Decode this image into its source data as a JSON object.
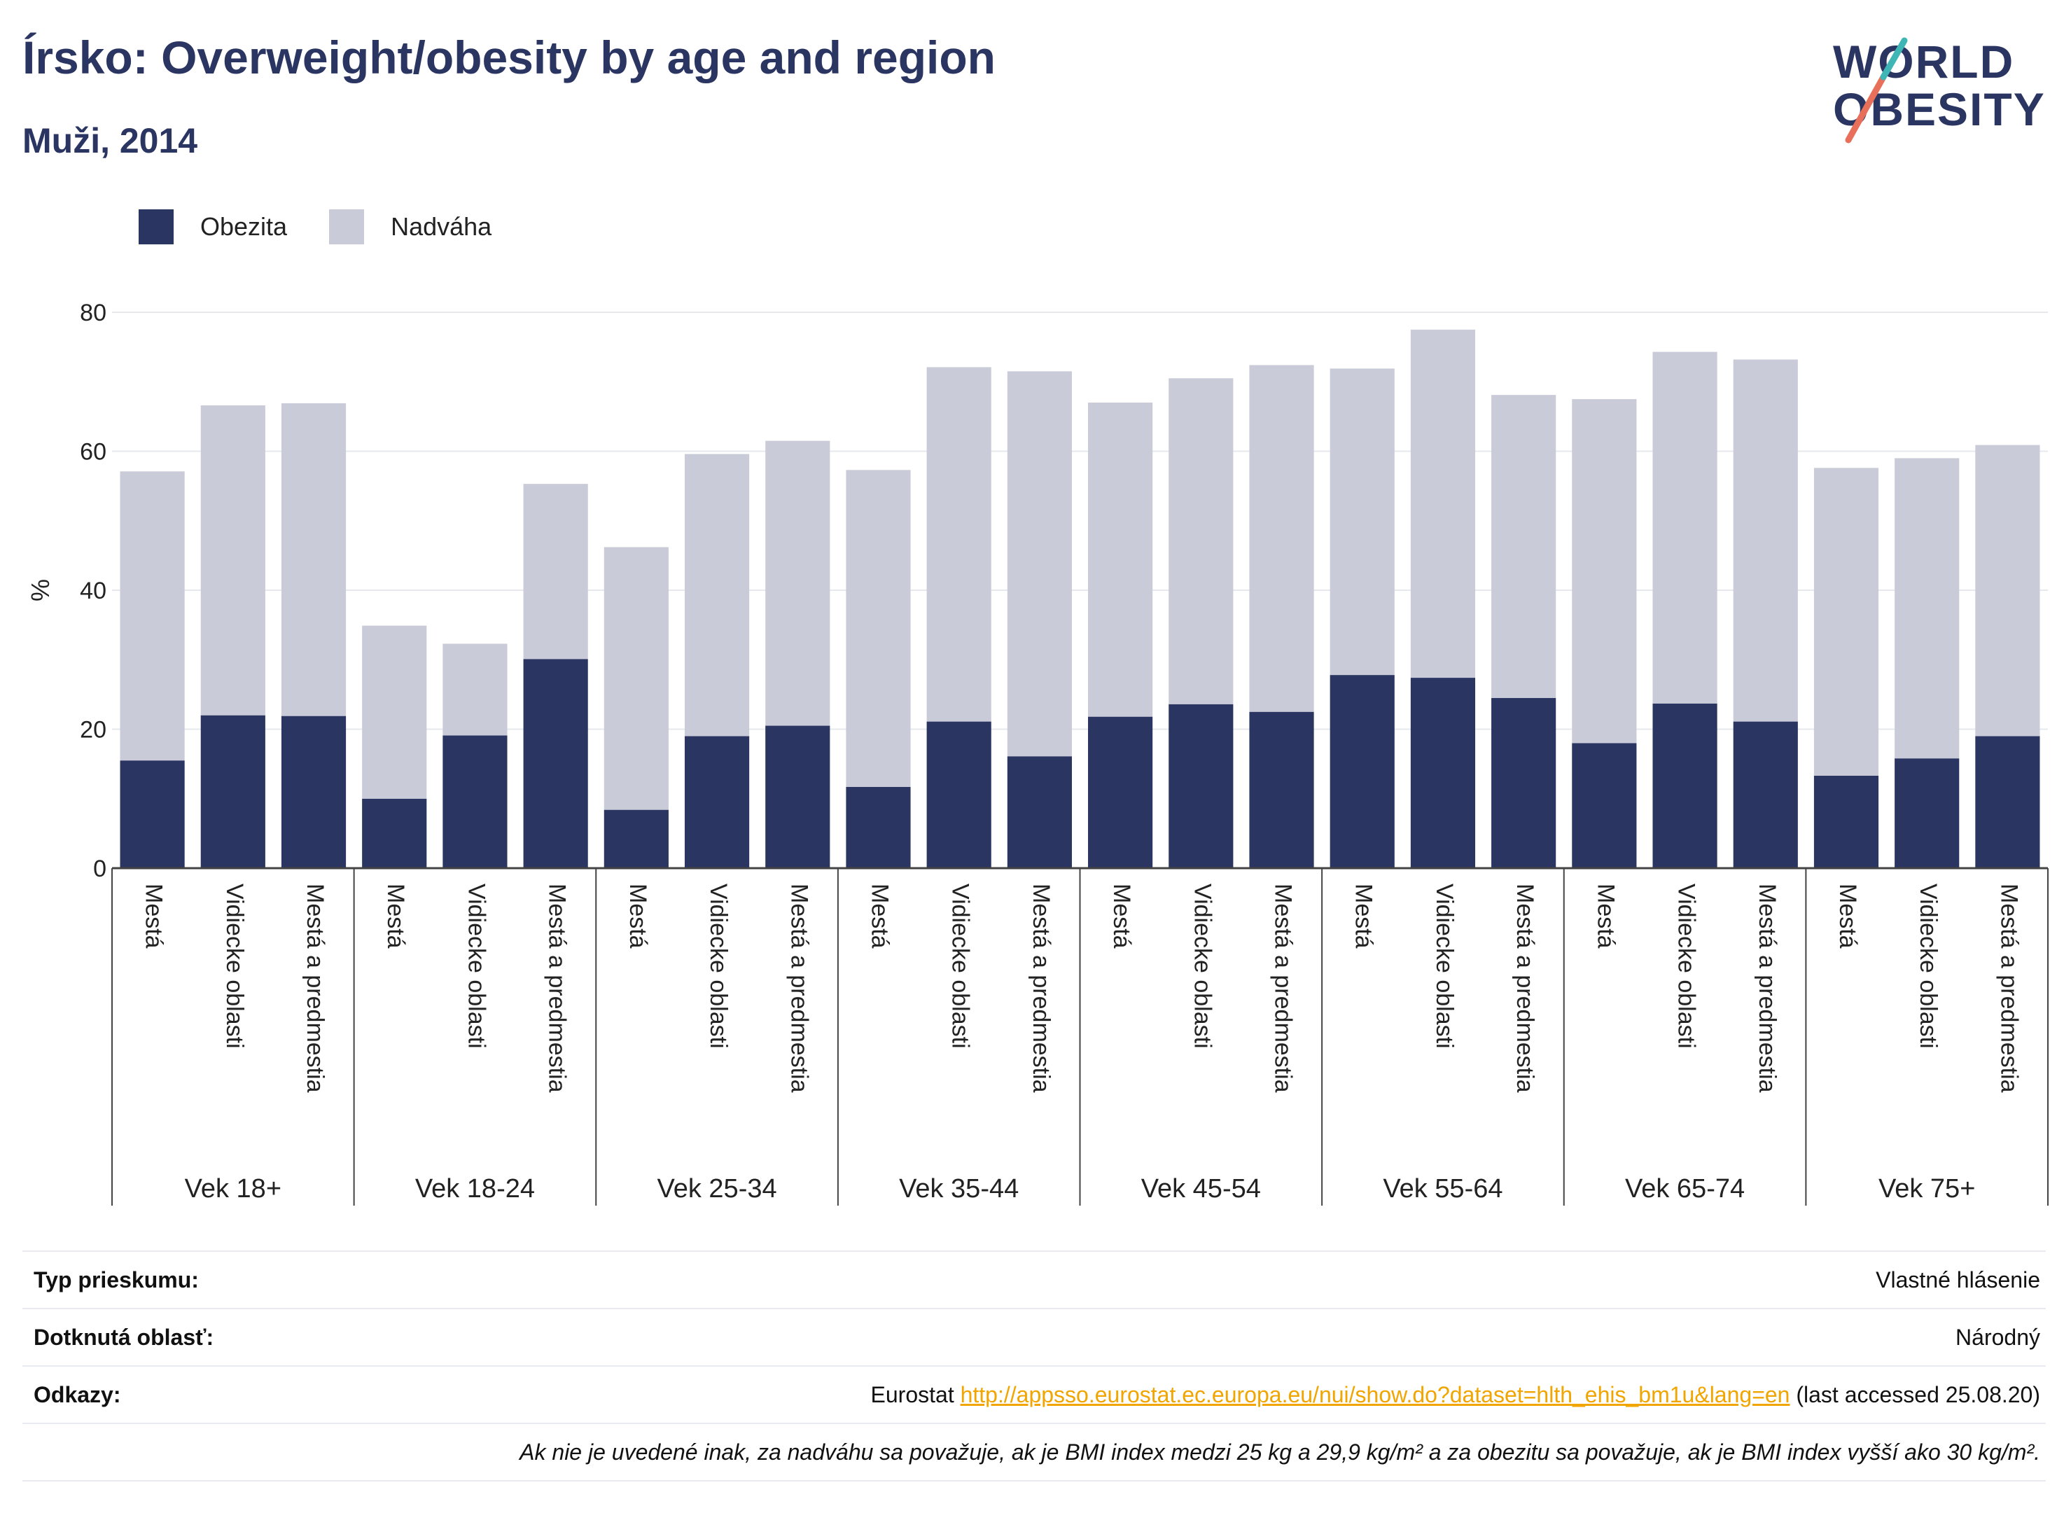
{
  "header": {
    "title": "Írsko: Overweight/obesity by age and region",
    "subtitle": "Muži, 2014"
  },
  "logo": {
    "line1": "WORLD",
    "line2": "OBESITY"
  },
  "legend": [
    {
      "label": "Obezita",
      "color": "#2b3562"
    },
    {
      "label": "Nadváha",
      "color": "#c9ccd8"
    }
  ],
  "chart_data": {
    "type": "bar",
    "stacked": true,
    "ylabel": "%",
    "ylim": [
      0,
      80
    ],
    "yticks": [
      0,
      20,
      40,
      60,
      80
    ],
    "grid": true,
    "legend_position": "top-left",
    "groups": [
      "Vek 18+",
      "Vek 18-24",
      "Vek 25-34",
      "Vek 35-44",
      "Vek 45-54",
      "Vek 55-64",
      "Vek 65-74",
      "Vek 75+"
    ],
    "categories": [
      "Mestá",
      "Vidiecke oblasti",
      "Mestá a predmestia"
    ],
    "series": [
      {
        "name": "Obezita",
        "color": "#2b3562",
        "values": [
          [
            15.5,
            22.0,
            21.9
          ],
          [
            10.0,
            19.1,
            30.1
          ],
          [
            8.4,
            19.0,
            20.5
          ],
          [
            11.7,
            21.1,
            16.1
          ],
          [
            21.8,
            23.6,
            22.5
          ],
          [
            27.8,
            27.4,
            24.5
          ],
          [
            18.0,
            23.7,
            21.1
          ],
          [
            13.3,
            15.8,
            19.0
          ]
        ]
      },
      {
        "name": "Nadváha",
        "color": "#c9ccd8",
        "values": [
          [
            41.6,
            44.6,
            45.0
          ],
          [
            24.9,
            13.2,
            25.2
          ],
          [
            37.8,
            40.6,
            41.0
          ],
          [
            45.6,
            51.0,
            55.4
          ],
          [
            45.2,
            46.9,
            49.9
          ],
          [
            44.1,
            50.1,
            43.6
          ],
          [
            49.5,
            50.6,
            52.1
          ],
          [
            44.3,
            43.2,
            41.9
          ]
        ]
      }
    ]
  },
  "footer": {
    "survey_type_label": "Typ prieskumu:",
    "survey_type_value": "Vlastné hlásenie",
    "area_label": "Dotknutá oblasť:",
    "area_value": "Národný",
    "refs_label": "Odkazy:",
    "refs_prefix": "Eurostat",
    "refs_link": "http://appsso.eurostat.ec.europa.eu/nui/show.do?dataset=hlth_ehis_bm1u&lang=en",
    "refs_suffix": "(last accessed 25.08.20)",
    "note": "Ak nie je uvedené inak, za nadváhu sa považuje, ak je BMI index medzi 25 kg a 29,9 kg/m² a za obezitu sa považuje, ak je BMI index vyšší ako 30 kg/m²."
  }
}
